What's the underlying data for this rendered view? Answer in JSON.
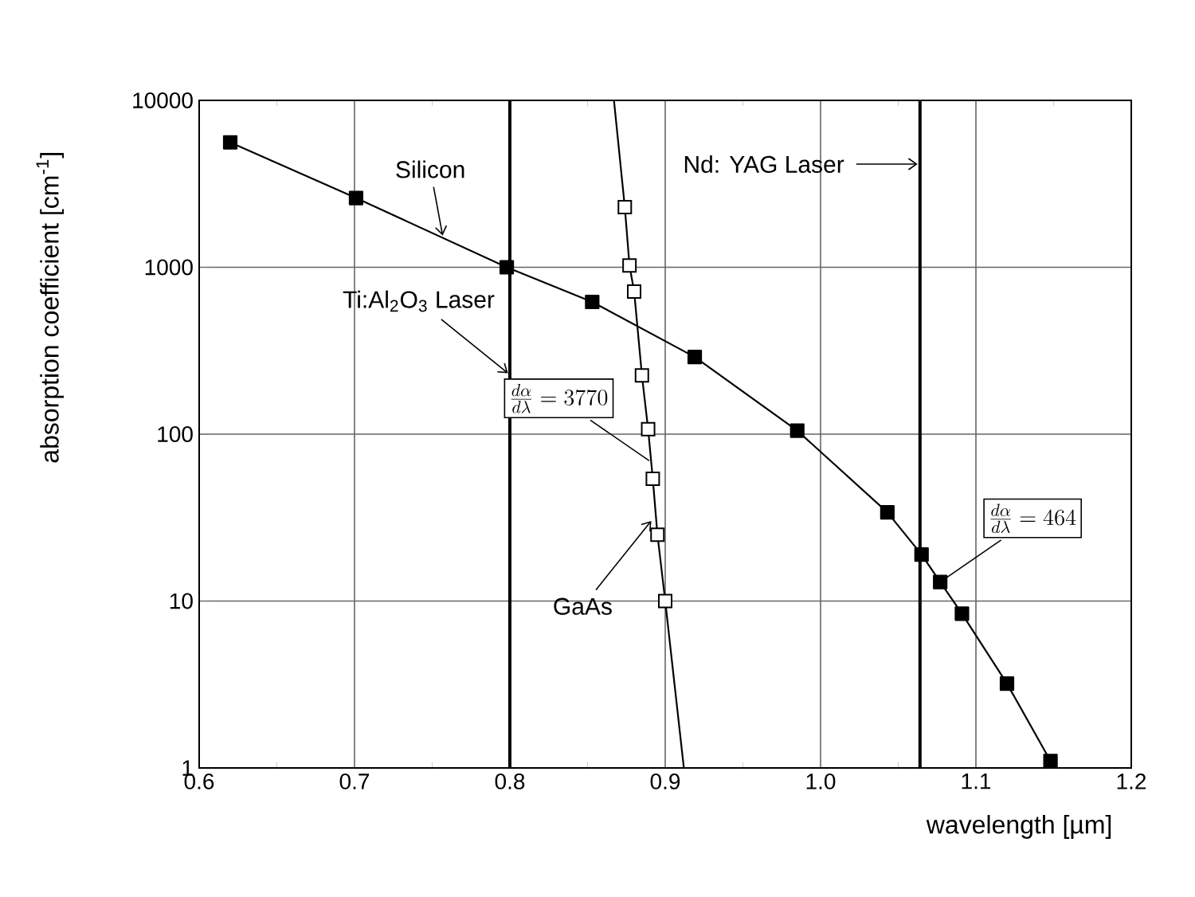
{
  "chart_data": {
    "type": "line",
    "xlabel": "wavelength [µm]",
    "ylabel": "absorption coefficient [cm$^{-1}$]",
    "xlim": [
      0.6,
      1.2
    ],
    "xticks": [
      0.6,
      0.7,
      0.8,
      0.9,
      {
        "value": 1.0,
        "label": "1.0"
      },
      1.1,
      1.2
    ],
    "ylim": [
      1,
      10000
    ],
    "yticks": [
      1,
      10,
      100,
      1000,
      10000
    ],
    "log": "y",
    "grid": true,
    "series": [
      {
        "color": "#000000",
        "marker": "square",
        "x": [
          0.62,
          0.701,
          0.798,
          0.853,
          0.919,
          0.985,
          1.043,
          1.065,
          1.077,
          1.091,
          1.12,
          1.148
        ],
        "values": [
          5600,
          2600,
          1000,
          620,
          290,
          105,
          34,
          19,
          13,
          8.4,
          3.2,
          1.1
        ]
      },
      {
        "color": "#000000",
        "marker": "none",
        "x": [
          0.912,
          0.9,
          0.895,
          0.892,
          0.889,
          0.885,
          0.88,
          0.877,
          0.874,
          0.867
        ],
        "values": [
          1,
          10,
          25,
          54,
          107,
          225,
          716,
          1025,
          2290,
          10000
        ]
      },
      {
        "type": "scatter",
        "color": "#000000",
        "marker": "square",
        "x": [
          0.9,
          0.895,
          0.892,
          0.889,
          0.885,
          0.88,
          0.877,
          0.874
        ],
        "values": [
          10,
          25,
          54,
          107,
          225,
          716,
          1025,
          2290
        ]
      }
    ],
    "ref_lines": [
      {
        "axis": "x",
        "value": 0.8,
        "color": "#000000"
      },
      {
        "axis": "x",
        "value": 1.064,
        "color": "#000000",
        "label": "Nd: YAG Laser"
      }
    ],
    "annotations": [
      {
        "text": "Silicon",
        "x": 0.757,
        "y": 1500
      },
      {
        "text": "GaAs",
        "x": 0.892,
        "y": 31
      },
      {
        "text": "Ti:Al$_{2}$O$_{3}$ Laser",
        "x": 0.8,
        "y": 227
      },
      {
        "text": "\\frac{d\\alpha}{d\\lambda}=464",
        "x": 1.077,
        "y": 13
      },
      {
        "text": "\\frac{d\\alpha}{d\\lambda}=3770",
        "x": 0.891,
        "y": 68
      }
    ]
  }
}
